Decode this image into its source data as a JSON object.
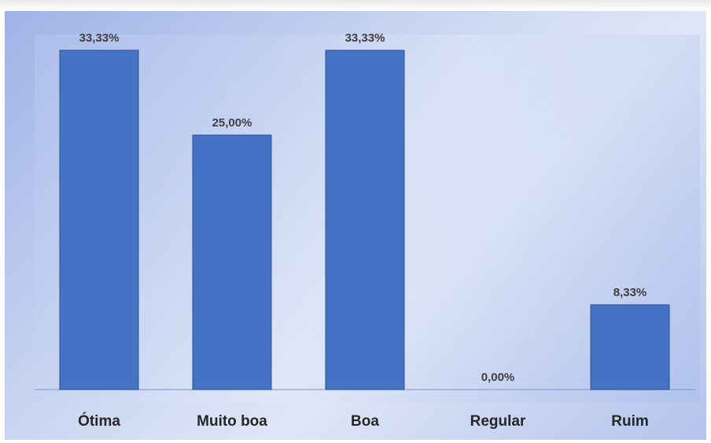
{
  "header": {
    "cropped_text": ""
  },
  "chart_data": {
    "type": "bar",
    "categories": [
      "Ótima",
      "Muito boa",
      "Boa",
      "Regular",
      "Ruim"
    ],
    "values": [
      33.33,
      25.0,
      33.33,
      0.0,
      8.33
    ],
    "data_labels": [
      "33,33%",
      "25,00%",
      "33,33%",
      "0,00%",
      "8,33%"
    ],
    "title": "",
    "xlabel": "",
    "ylabel": "",
    "ylim": [
      0,
      33.33
    ],
    "grid": false,
    "legend": "none",
    "colors": {
      "bar": "#4472c4",
      "bar_border": "#2f528f",
      "label": "#404040"
    }
  }
}
